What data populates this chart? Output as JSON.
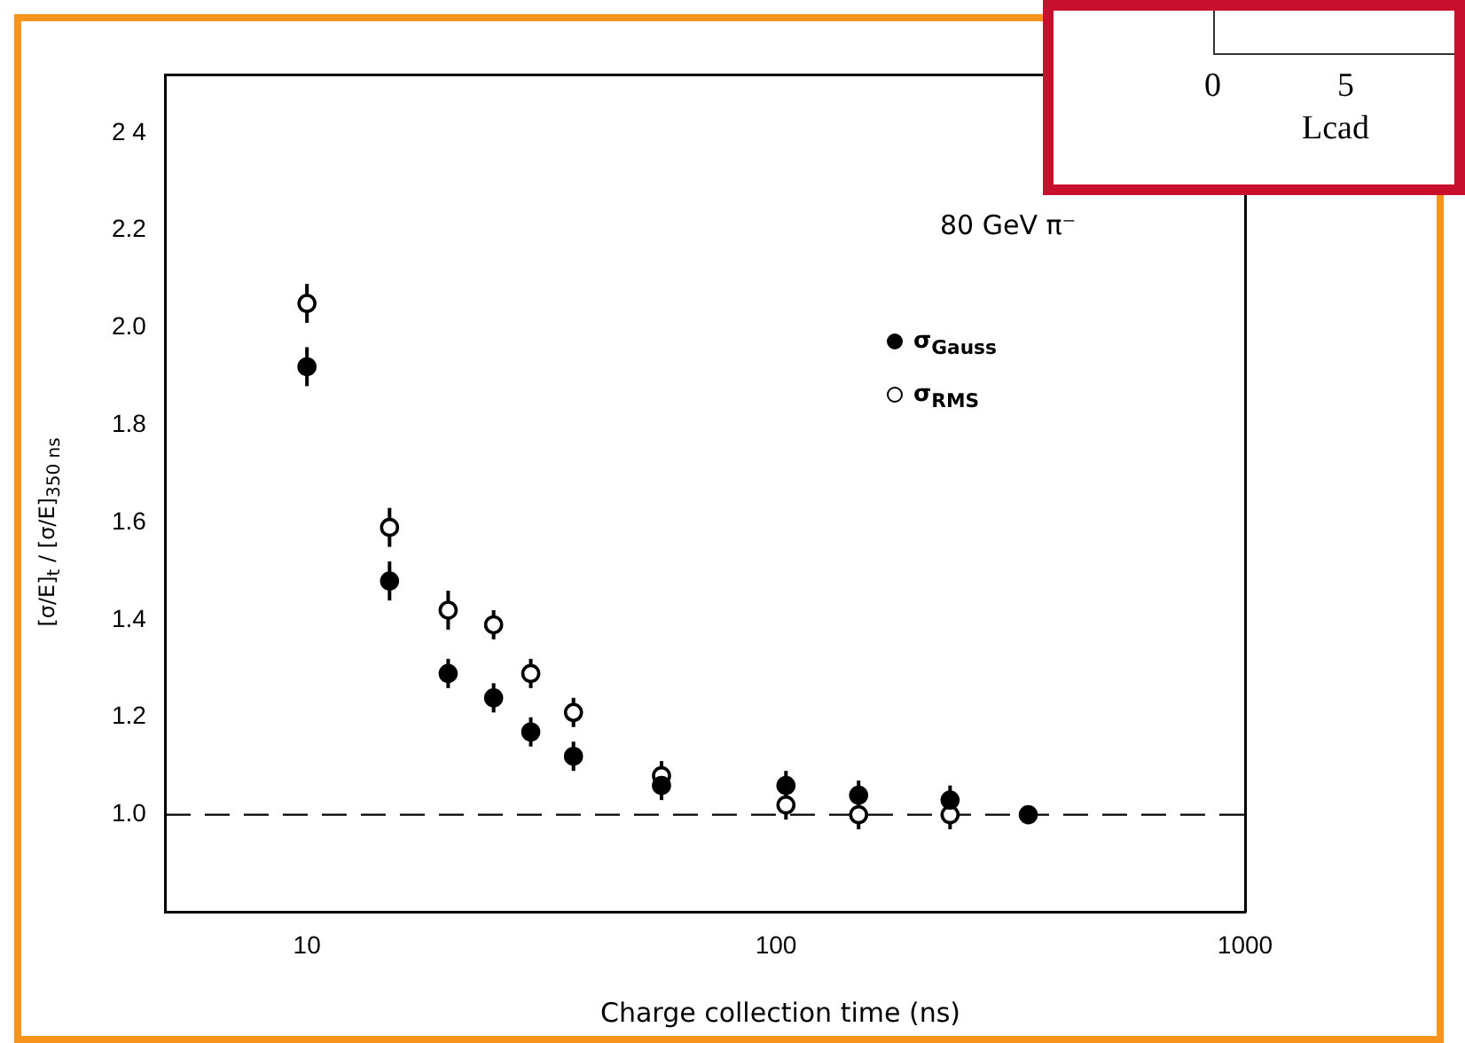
{
  "chart_data": {
    "type": "scatter",
    "xlabel": "Charge collection time (ns)",
    "ylabel": "[σ/E]$_{t}$ / [σ/E]$_{350 ns}$",
    "annotations": [
      "80 GeV π⁻",
      "0",
      "5",
      "Lcad"
    ],
    "log": "x",
    "xlim": [
      5,
      1000
    ],
    "xticks": [
      10,
      100,
      1000
    ],
    "ylim": [
      0.8,
      2.52
    ],
    "yticks": [
      {
        "value": 1,
        "label": "1.0"
      },
      {
        "value": 1.2,
        "label": "1.2"
      },
      {
        "value": 1.4,
        "label": "1.4"
      },
      {
        "value": 1.6,
        "label": "1.6"
      },
      {
        "value": 1.8,
        "label": "1.8"
      },
      {
        "value": 2,
        "label": "2.0"
      },
      {
        "value": 2.2,
        "label": "2.2"
      },
      {
        "value": 2.4,
        "label": "2 4"
      }
    ],
    "marker": "circle",
    "legend": "top right",
    "ref_lines": [
      {
        "axis": "y",
        "value": 1,
        "line_style": "dashed",
        "color": "#000000"
      }
    ],
    "series": [
      {
        "name": "σ$_{Gauss}$",
        "color": "#000000",
        "x": [
          10,
          15,
          20,
          25,
          30,
          37,
          57,
          105,
          150,
          235,
          345
        ],
        "values": [
          1.92,
          1.48,
          1.29,
          1.24,
          1.17,
          1.12,
          1.06,
          1.06,
          1.04,
          1.03,
          1.0
        ],
        "errors": [
          0.04,
          0.04,
          0.03,
          0.03,
          0.03,
          0.03,
          0.03,
          0.03,
          0.03,
          0.03,
          null
        ]
      },
      {
        "name": "σ$_{RMS}$",
        "color": "#000000",
        "x": [
          10,
          15,
          20,
          25,
          30,
          37,
          57,
          105,
          150,
          235
        ],
        "values": [
          2.05,
          1.59,
          1.42,
          1.39,
          1.29,
          1.21,
          1.08,
          1.02,
          1.0,
          1.0
        ],
        "errors": [
          0.04,
          0.04,
          0.04,
          0.03,
          0.03,
          0.03,
          0.03,
          0.03,
          0.03,
          0.03
        ]
      }
    ]
  }
}
